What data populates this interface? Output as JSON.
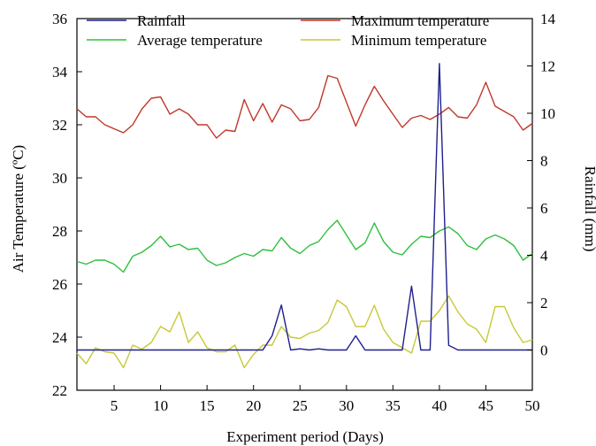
{
  "chart_data": {
    "type": "line",
    "xlabel": "Experiment period (Days)",
    "ylabel_left": "Air Temperature (ºC)",
    "ylabel_right": "Rainfall (mm)",
    "x_ticks": [
      5,
      10,
      15,
      20,
      25,
      30,
      35,
      40,
      45,
      50
    ],
    "left_ticks": [
      22,
      24,
      26,
      28,
      30,
      32,
      34,
      36
    ],
    "right_ticks": [
      0,
      2,
      4,
      6,
      8,
      10,
      12,
      14
    ],
    "xlim": [
      1,
      50
    ],
    "ylim_left": [
      22,
      36
    ],
    "ylim_right": [
      -1.7,
      14
    ],
    "grid": false,
    "legend_position": "top",
    "series": [
      {
        "name": "Rainfall",
        "axis": "right",
        "color": "#1f1f8f",
        "x": [
          1,
          2,
          3,
          4,
          5,
          6,
          7,
          8,
          9,
          10,
          11,
          12,
          13,
          14,
          15,
          16,
          17,
          18,
          19,
          20,
          21,
          22,
          23,
          24,
          25,
          26,
          27,
          28,
          29,
          30,
          31,
          32,
          33,
          34,
          35,
          36,
          37,
          38,
          39,
          40,
          41,
          42,
          43,
          44,
          45,
          46,
          47,
          48,
          49,
          50
        ],
        "values": [
          0,
          0,
          0,
          0,
          0,
          0,
          0,
          0,
          0,
          0,
          0,
          0,
          0,
          0,
          0,
          0,
          0,
          0,
          0,
          0,
          0,
          0.6,
          1.9,
          0,
          0.05,
          0,
          0.05,
          0,
          0,
          0,
          0.6,
          0,
          0,
          0,
          0,
          0,
          2.7,
          0,
          0,
          12.1,
          0.2,
          0,
          0,
          0,
          0,
          0,
          0,
          0,
          0,
          0
        ]
      },
      {
        "name": "Maximum temperature",
        "axis": "left",
        "color": "#c0392b",
        "x": [
          1,
          2,
          3,
          4,
          5,
          6,
          7,
          8,
          9,
          10,
          11,
          12,
          13,
          14,
          15,
          16,
          17,
          18,
          19,
          20,
          21,
          22,
          23,
          24,
          25,
          26,
          27,
          28,
          29,
          30,
          31,
          32,
          33,
          34,
          35,
          36,
          37,
          38,
          39,
          40,
          41,
          42,
          43,
          44,
          45,
          46,
          47,
          48,
          49,
          50
        ],
        "values": [
          32.6,
          32.3,
          32.3,
          32.0,
          31.85,
          31.7,
          32.0,
          32.6,
          33.0,
          33.05,
          32.4,
          32.6,
          32.4,
          32.0,
          32.0,
          31.5,
          31.8,
          31.75,
          32.95,
          32.15,
          32.8,
          32.1,
          32.75,
          32.6,
          32.15,
          32.2,
          32.65,
          33.85,
          33.75,
          32.85,
          31.95,
          32.75,
          33.45,
          32.9,
          32.4,
          31.9,
          32.25,
          32.35,
          32.2,
          32.4,
          32.65,
          32.3,
          32.25,
          32.75,
          33.6,
          32.7,
          32.5,
          32.3,
          31.8,
          32.05
        ]
      },
      {
        "name": "Average temperature",
        "axis": "left",
        "color": "#2fbf3f",
        "x": [
          1,
          2,
          3,
          4,
          5,
          6,
          7,
          8,
          9,
          10,
          11,
          12,
          13,
          14,
          15,
          16,
          17,
          18,
          19,
          20,
          21,
          22,
          23,
          24,
          25,
          26,
          27,
          28,
          29,
          30,
          31,
          32,
          33,
          34,
          35,
          36,
          37,
          38,
          39,
          40,
          41,
          42,
          43,
          44,
          45,
          46,
          47,
          48,
          49,
          50
        ],
        "values": [
          26.85,
          26.75,
          26.9,
          26.9,
          26.75,
          26.45,
          27.05,
          27.2,
          27.45,
          27.8,
          27.4,
          27.5,
          27.3,
          27.35,
          26.9,
          26.7,
          26.8,
          27.0,
          27.15,
          27.05,
          27.3,
          27.25,
          27.75,
          27.35,
          27.15,
          27.45,
          27.6,
          28.05,
          28.4,
          27.85,
          27.3,
          27.55,
          28.3,
          27.6,
          27.2,
          27.1,
          27.5,
          27.8,
          27.75,
          28.0,
          28.15,
          27.9,
          27.45,
          27.3,
          27.7,
          27.85,
          27.7,
          27.45,
          26.9,
          27.15
        ]
      },
      {
        "name": "Minimum temperature",
        "axis": "left",
        "color": "#c8c83a",
        "x": [
          1,
          2,
          3,
          4,
          5,
          6,
          7,
          8,
          9,
          10,
          11,
          12,
          13,
          14,
          15,
          16,
          17,
          18,
          19,
          20,
          21,
          22,
          23,
          24,
          25,
          26,
          27,
          28,
          29,
          30,
          31,
          32,
          33,
          34,
          35,
          36,
          37,
          38,
          39,
          40,
          41,
          42,
          43,
          44,
          45,
          46,
          47,
          48,
          49,
          50
        ],
        "values": [
          23.4,
          23.0,
          23.6,
          23.45,
          23.4,
          22.85,
          23.7,
          23.55,
          23.8,
          24.4,
          24.2,
          24.95,
          23.8,
          24.2,
          23.6,
          23.45,
          23.45,
          23.7,
          22.85,
          23.35,
          23.7,
          23.7,
          24.4,
          24.0,
          23.95,
          24.15,
          24.25,
          24.55,
          25.4,
          25.15,
          24.4,
          24.4,
          25.2,
          24.3,
          23.8,
          23.6,
          23.4,
          24.6,
          24.6,
          25.0,
          25.55,
          24.95,
          24.5,
          24.3,
          23.8,
          25.15,
          25.15,
          24.35,
          23.8,
          23.9
        ]
      }
    ]
  }
}
